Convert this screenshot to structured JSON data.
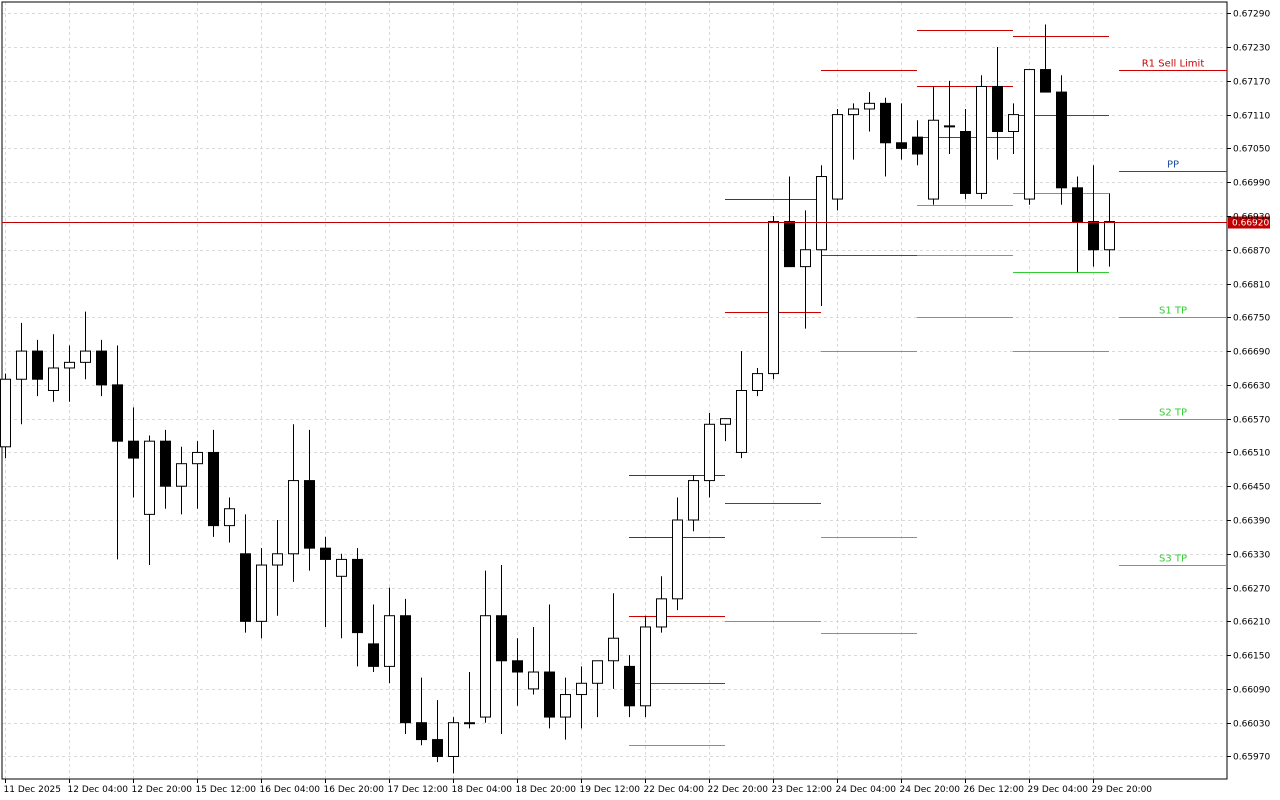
{
  "chart_data": {
    "type": "candlestick",
    "title": "",
    "colors": {
      "background": "#ffffff",
      "grid": "#d9d9d9",
      "candle_body_up": "#ffffff",
      "candle_body_down": "#000000",
      "candle_outline": "#000000",
      "current_price_line": "#c00000",
      "resistance": "#cc0000",
      "pivot": "#1f4e9c",
      "support": "#33cc33"
    },
    "y_axis": {
      "position": "right",
      "ylim": [
        0.6593,
        0.6731
      ],
      "tick_labels": [
        "0.67290",
        "0.67230",
        "0.67170",
        "0.67110",
        "0.67050",
        "0.66990",
        "0.66930",
        "0.66870",
        "0.66810",
        "0.66750",
        "0.66690",
        "0.66630",
        "0.66570",
        "0.66510",
        "0.66450",
        "0.66390",
        "0.66330",
        "0.66270",
        "0.66210",
        "0.66150",
        "0.66090",
        "0.66030",
        "0.65970"
      ]
    },
    "x_axis": {
      "tick_labels": [
        "11 Dec 2025",
        "12 Dec 04:00",
        "12 Dec 20:00",
        "15 Dec 12:00",
        "16 Dec 04:00",
        "16 Dec 20:00",
        "17 Dec 12:00",
        "18 Dec 04:00",
        "18 Dec 20:00",
        "19 Dec 12:00",
        "22 Dec 04:00",
        "22 Dec 20:00",
        "23 Dec 12:00",
        "24 Dec 04:00",
        "24 Dec 20:00",
        "26 Dec 12:00",
        "29 Dec 04:00",
        "29 Dec 20:00"
      ],
      "tick_bar_index": [
        0,
        4,
        8,
        12,
        16,
        20,
        24,
        28,
        32,
        36,
        40,
        44,
        48,
        52,
        56,
        60,
        64,
        68
      ]
    },
    "current_price": {
      "value": 0.6692,
      "label": "0.66920"
    },
    "candles": [
      {
        "o": 0.6652,
        "h": 0.6665,
        "l": 0.665,
        "c": 0.6664
      },
      {
        "o": 0.6664,
        "h": 0.6674,
        "l": 0.6656,
        "c": 0.6669
      },
      {
        "o": 0.6669,
        "h": 0.6671,
        "l": 0.6661,
        "c": 0.6664
      },
      {
        "o": 0.6662,
        "h": 0.6672,
        "l": 0.666,
        "c": 0.6666
      },
      {
        "o": 0.6666,
        "h": 0.667,
        "l": 0.666,
        "c": 0.6667
      },
      {
        "o": 0.6667,
        "h": 0.6676,
        "l": 0.6664,
        "c": 0.6669
      },
      {
        "o": 0.6669,
        "h": 0.6671,
        "l": 0.6661,
        "c": 0.6663
      },
      {
        "o": 0.6663,
        "h": 0.667,
        "l": 0.6632,
        "c": 0.6653
      },
      {
        "o": 0.6653,
        "h": 0.6659,
        "l": 0.6643,
        "c": 0.665
      },
      {
        "o": 0.664,
        "h": 0.6654,
        "l": 0.6631,
        "c": 0.6653
      },
      {
        "o": 0.6653,
        "h": 0.6655,
        "l": 0.6641,
        "c": 0.6645
      },
      {
        "o": 0.6645,
        "h": 0.6652,
        "l": 0.664,
        "c": 0.6649
      },
      {
        "o": 0.6649,
        "h": 0.6653,
        "l": 0.6641,
        "c": 0.6651
      },
      {
        "o": 0.6651,
        "h": 0.6655,
        "l": 0.6636,
        "c": 0.6638
      },
      {
        "o": 0.6638,
        "h": 0.6643,
        "l": 0.6635,
        "c": 0.6641
      },
      {
        "o": 0.6633,
        "h": 0.664,
        "l": 0.6619,
        "c": 0.6621
      },
      {
        "o": 0.6621,
        "h": 0.6634,
        "l": 0.6618,
        "c": 0.6631
      },
      {
        "o": 0.6631,
        "h": 0.6639,
        "l": 0.6622,
        "c": 0.6633
      },
      {
        "o": 0.6633,
        "h": 0.6656,
        "l": 0.6628,
        "c": 0.6646
      },
      {
        "o": 0.6646,
        "h": 0.6655,
        "l": 0.663,
        "c": 0.6634
      },
      {
        "o": 0.6634,
        "h": 0.6636,
        "l": 0.662,
        "c": 0.6632
      },
      {
        "o": 0.6629,
        "h": 0.6633,
        "l": 0.6618,
        "c": 0.6632
      },
      {
        "o": 0.6632,
        "h": 0.6634,
        "l": 0.6613,
        "c": 0.6619
      },
      {
        "o": 0.6617,
        "h": 0.6624,
        "l": 0.6612,
        "c": 0.6613
      },
      {
        "o": 0.6613,
        "h": 0.6627,
        "l": 0.661,
        "c": 0.6622
      },
      {
        "o": 0.6622,
        "h": 0.6625,
        "l": 0.6601,
        "c": 0.6603
      },
      {
        "o": 0.6603,
        "h": 0.6611,
        "l": 0.6599,
        "c": 0.66
      },
      {
        "o": 0.66,
        "h": 0.6607,
        "l": 0.6596,
        "c": 0.6597
      },
      {
        "o": 0.6597,
        "h": 0.6604,
        "l": 0.6594,
        "c": 0.6603
      },
      {
        "o": 0.6603,
        "h": 0.6612,
        "l": 0.6602,
        "c": 0.6603
      },
      {
        "o": 0.6604,
        "h": 0.663,
        "l": 0.6603,
        "c": 0.6622
      },
      {
        "o": 0.6622,
        "h": 0.6631,
        "l": 0.6601,
        "c": 0.6614
      },
      {
        "o": 0.6614,
        "h": 0.6618,
        "l": 0.6606,
        "c": 0.6612
      },
      {
        "o": 0.6609,
        "h": 0.662,
        "l": 0.6608,
        "c": 0.6612
      },
      {
        "o": 0.6612,
        "h": 0.6624,
        "l": 0.6602,
        "c": 0.6604
      },
      {
        "o": 0.6604,
        "h": 0.6611,
        "l": 0.66,
        "c": 0.6608
      },
      {
        "o": 0.6608,
        "h": 0.6613,
        "l": 0.6602,
        "c": 0.661
      },
      {
        "o": 0.661,
        "h": 0.6614,
        "l": 0.6604,
        "c": 0.6614
      },
      {
        "o": 0.6614,
        "h": 0.6626,
        "l": 0.6609,
        "c": 0.6618
      },
      {
        "o": 0.6613,
        "h": 0.6615,
        "l": 0.6604,
        "c": 0.6606
      },
      {
        "o": 0.6606,
        "h": 0.6622,
        "l": 0.6604,
        "c": 0.662
      },
      {
        "o": 0.662,
        "h": 0.6629,
        "l": 0.6619,
        "c": 0.6625
      },
      {
        "o": 0.6625,
        "h": 0.6643,
        "l": 0.6623,
        "c": 0.6639
      },
      {
        "o": 0.6639,
        "h": 0.6647,
        "l": 0.6637,
        "c": 0.6646
      },
      {
        "o": 0.6646,
        "h": 0.6658,
        "l": 0.6643,
        "c": 0.6656
      },
      {
        "o": 0.6656,
        "h": 0.6657,
        "l": 0.6653,
        "c": 0.6657
      },
      {
        "o": 0.6651,
        "h": 0.6669,
        "l": 0.665,
        "c": 0.6662
      },
      {
        "o": 0.6662,
        "h": 0.6666,
        "l": 0.6661,
        "c": 0.6665
      },
      {
        "o": 0.6665,
        "h": 0.6693,
        "l": 0.6664,
        "c": 0.6692
      },
      {
        "o": 0.6692,
        "h": 0.67,
        "l": 0.6684,
        "c": 0.6684
      },
      {
        "o": 0.6684,
        "h": 0.6694,
        "l": 0.6673,
        "c": 0.6687
      },
      {
        "o": 0.6687,
        "h": 0.6702,
        "l": 0.6677,
        "c": 0.67
      },
      {
        "o": 0.6696,
        "h": 0.6712,
        "l": 0.6694,
        "c": 0.6711
      },
      {
        "o": 0.6711,
        "h": 0.6713,
        "l": 0.6703,
        "c": 0.6712
      },
      {
        "o": 0.6712,
        "h": 0.6715,
        "l": 0.6708,
        "c": 0.6713
      },
      {
        "o": 0.6713,
        "h": 0.6714,
        "l": 0.67,
        "c": 0.6706
      },
      {
        "o": 0.6706,
        "h": 0.6713,
        "l": 0.6703,
        "c": 0.6705
      },
      {
        "o": 0.6707,
        "h": 0.671,
        "l": 0.6702,
        "c": 0.6704
      },
      {
        "o": 0.6696,
        "h": 0.6716,
        "l": 0.6695,
        "c": 0.671
      },
      {
        "o": 0.6709,
        "h": 0.6717,
        "l": 0.6704,
        "c": 0.6709
      },
      {
        "o": 0.6708,
        "h": 0.6712,
        "l": 0.6696,
        "c": 0.6697
      },
      {
        "o": 0.6697,
        "h": 0.6718,
        "l": 0.6696,
        "c": 0.6716
      },
      {
        "o": 0.6716,
        "h": 0.6723,
        "l": 0.6703,
        "c": 0.6708
      },
      {
        "o": 0.6708,
        "h": 0.6713,
        "l": 0.6704,
        "c": 0.6711
      },
      {
        "o": 0.6696,
        "h": 0.6719,
        "l": 0.6695,
        "c": 0.6719
      },
      {
        "o": 0.6719,
        "h": 0.6727,
        "l": 0.6715,
        "c": 0.6715
      },
      {
        "o": 0.6715,
        "h": 0.6718,
        "l": 0.6695,
        "c": 0.6698
      },
      {
        "o": 0.6698,
        "h": 0.67,
        "l": 0.6683,
        "c": 0.6692
      },
      {
        "o": 0.6692,
        "h": 0.6702,
        "l": 0.6684,
        "c": 0.6687
      },
      {
        "o": 0.6687,
        "h": 0.6697,
        "l": 0.6684,
        "c": 0.6692
      }
    ],
    "level_segments": [
      {
        "kind": "support",
        "value": 0.6599,
        "start": 39,
        "end": 45
      },
      {
        "kind": "resistance",
        "value": 0.6622,
        "start": 39,
        "end": 45
      },
      {
        "kind": "pivot",
        "value": 0.661,
        "start": 39,
        "end": 45
      },
      {
        "kind": "resistance",
        "value": 0.6636,
        "start": 39,
        "end": 45
      },
      {
        "kind": "resistance",
        "value": 0.6647,
        "start": 39,
        "end": 45
      },
      {
        "kind": "support",
        "value": 0.6621,
        "start": 45,
        "end": 51
      },
      {
        "kind": "pivot",
        "value": 0.6642,
        "start": 45,
        "end": 51
      },
      {
        "kind": "resistance",
        "value": 0.6676,
        "start": 45,
        "end": 51
      },
      {
        "kind": "resistance",
        "value": 0.6696,
        "start": 45,
        "end": 51
      },
      {
        "kind": "support",
        "value": 0.6619,
        "start": 51,
        "end": 57
      },
      {
        "kind": "support",
        "value": 0.6636,
        "start": 51,
        "end": 57
      },
      {
        "kind": "support",
        "value": 0.6669,
        "start": 51,
        "end": 57
      },
      {
        "kind": "pivot",
        "value": 0.6686,
        "start": 51,
        "end": 57
      },
      {
        "kind": "resistance",
        "value": 0.6719,
        "start": 51,
        "end": 57
      },
      {
        "kind": "support",
        "value": 0.6675,
        "start": 57,
        "end": 63
      },
      {
        "kind": "support",
        "value": 0.6686,
        "start": 57,
        "end": 63
      },
      {
        "kind": "support",
        "value": 0.6695,
        "start": 57,
        "end": 63
      },
      {
        "kind": "pivot",
        "value": 0.6707,
        "start": 57,
        "end": 63
      },
      {
        "kind": "resistance",
        "value": 0.6716,
        "start": 57,
        "end": 63
      },
      {
        "kind": "resistance",
        "value": 0.6726,
        "start": 57,
        "end": 63
      },
      {
        "kind": "support",
        "value": 0.6669,
        "start": 63,
        "end": 69
      },
      {
        "kind": "support",
        "value": 0.6683,
        "start": 63,
        "end": 69
      },
      {
        "kind": "support",
        "value": 0.6697,
        "start": 63,
        "end": 69
      },
      {
        "kind": "pivot",
        "value": 0.6711,
        "start": 63,
        "end": 69
      },
      {
        "kind": "resistance",
        "value": 0.6725,
        "start": 63,
        "end": 69
      }
    ],
    "labeled_levels": [
      {
        "label": "R1 Sell Limit",
        "kind": "resistance",
        "value": 0.6719
      },
      {
        "label": "PP",
        "kind": "pivot",
        "value": 0.6701
      },
      {
        "label": "S1 TP",
        "kind": "support",
        "value": 0.6675
      },
      {
        "label": "S2 TP",
        "kind": "support",
        "value": 0.6657
      },
      {
        "label": "S3 TP",
        "kind": "support",
        "value": 0.6631
      }
    ]
  }
}
